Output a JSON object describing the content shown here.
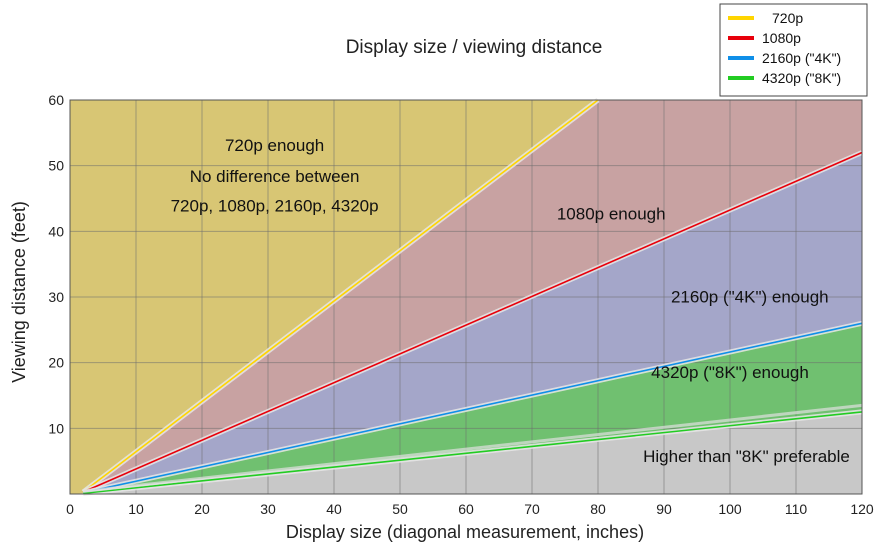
{
  "chart_data": {
    "type": "area",
    "title": "Display size / viewing distance",
    "xlabel": "Display size (diagonal measurement, inches)",
    "ylabel": "Viewing distance (feet)",
    "xlim": [
      0,
      120
    ],
    "ylim": [
      0,
      60
    ],
    "xticks": [
      0,
      10,
      20,
      30,
      40,
      50,
      60,
      70,
      80,
      90,
      100,
      110,
      120
    ],
    "yticks": [
      10,
      20,
      30,
      40,
      50,
      60
    ],
    "ytick_top_label": "60",
    "grid": true,
    "legend_position": "top-right",
    "series": [
      {
        "name": "720p",
        "color": "#FFD500",
        "x": [
          2,
          80
        ],
        "y": [
          0.3,
          60
        ]
      },
      {
        "name": "1080p",
        "color": "#E8000B",
        "x": [
          2,
          120
        ],
        "y": [
          0.3,
          52
        ]
      },
      {
        "name": "2160p (\"4K\")",
        "color": "#0F8FE8",
        "x": [
          2,
          120
        ],
        "y": [
          0.2,
          26
        ]
      },
      {
        "name": "4320p (\"8K\")",
        "color": "#22CC22",
        "x": [
          2,
          120
        ],
        "y": [
          0.1,
          12.5
        ]
      }
    ],
    "regions": [
      {
        "name": "720p enough",
        "color": "#D8C674"
      },
      {
        "name": "1080p enough",
        "color": "#C8A2A2"
      },
      {
        "name": "2160p (\"4K\") enough",
        "color": "#A4A6C9"
      },
      {
        "name": "4320p (\"8K\") enough",
        "color": "#70C070"
      },
      {
        "name": "Higher than \"8K\" preferable",
        "color": "#C8C8C8"
      }
    ],
    "annotations": [
      {
        "text": "720p enough",
        "x": 31,
        "y": 52.2
      },
      {
        "text": "No difference between",
        "x": 31,
        "y": 47.5
      },
      {
        "text": "720p, 1080p, 2160p, 4320p",
        "x": 31,
        "y": 43
      },
      {
        "text": "1080p enough",
        "x": 82,
        "y": 41.8
      },
      {
        "text": "2160p (\"4K\") enough",
        "x": 103,
        "y": 29.2
      },
      {
        "text": "4320p (\"8K\") enough",
        "x": 100,
        "y": 17.7
      },
      {
        "text": "Higher than \"8K\" preferable",
        "x": 102.5,
        "y": 4.9
      }
    ]
  }
}
